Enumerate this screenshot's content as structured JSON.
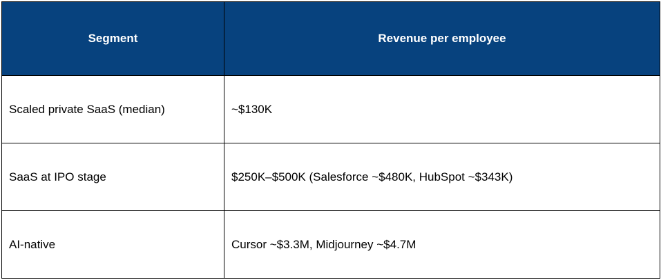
{
  "table": {
    "header_color": "#07427e",
    "columns": [
      "Segment",
      "Revenue per employee"
    ],
    "rows": [
      {
        "segment": "Scaled private SaaS (median)",
        "revenue": "~$130K"
      },
      {
        "segment": "SaaS at IPO stage",
        "revenue": "$250K–$500K (Salesforce ~$480K, HubSpot ~$343K)"
      },
      {
        "segment": "AI-native",
        "revenue": "Cursor ~$3.3M, Midjourney ~$4.7M"
      }
    ]
  }
}
